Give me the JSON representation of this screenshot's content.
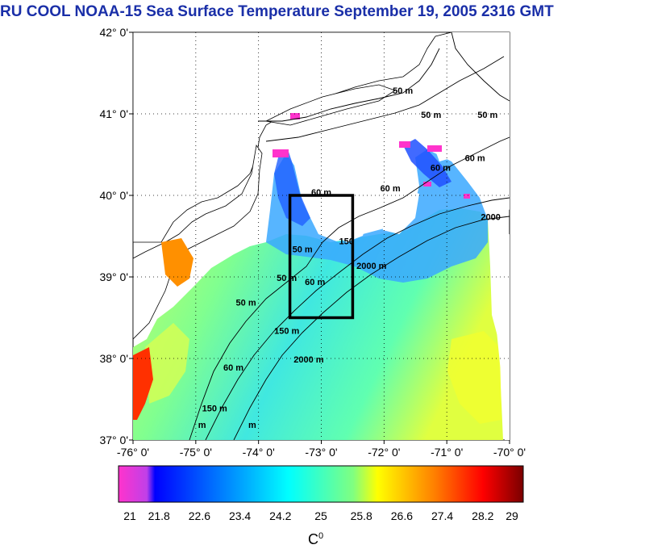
{
  "title": "RU COOL  NOAA-15 Sea Surface Temperature September 19, 2005 2316 GMT",
  "map": {
    "lon_range": [
      -76,
      -70
    ],
    "lat_range": [
      37,
      42
    ],
    "lon_ticks": [
      "-76° 0'",
      "-75° 0'",
      "-74° 0'",
      "-73° 0'",
      "-72° 0'",
      "-71° 0'",
      "-70° 0'"
    ],
    "lat_ticks": [
      "42° 0'",
      "41° 0'",
      "40° 0'",
      "39° 0'",
      "38° 0'",
      "37° 0'"
    ],
    "grid": true,
    "box": {
      "lon": [
        -73.5,
        -72.5
      ],
      "lat": [
        38.5,
        40.0
      ]
    },
    "contour_labels": [
      {
        "text": "50 m",
        "lon": -71.7,
        "lat": 41.25
      },
      {
        "text": "50 m",
        "lon": -71.25,
        "lat": 40.95
      },
      {
        "text": "50 m",
        "lon": -70.35,
        "lat": 40.95
      },
      {
        "text": "60 m",
        "lon": -70.55,
        "lat": 40.42
      },
      {
        "text": "60 m",
        "lon": -71.1,
        "lat": 40.3
      },
      {
        "text": "60 m",
        "lon": -71.9,
        "lat": 40.05
      },
      {
        "text": "60 m",
        "lon": -73.0,
        "lat": 40.0
      },
      {
        "text": "2000",
        "lon": -70.3,
        "lat": 39.7
      },
      {
        "text": "150",
        "lon": -72.6,
        "lat": 39.4
      },
      {
        "text": "2000 m",
        "lon": -72.2,
        "lat": 39.1
      },
      {
        "text": "50 m",
        "lon": -73.3,
        "lat": 39.3
      },
      {
        "text": "50 m",
        "lon": -73.55,
        "lat": 38.95
      },
      {
        "text": "60 m",
        "lon": -73.1,
        "lat": 38.9
      },
      {
        "text": "50 m",
        "lon": -74.2,
        "lat": 38.65
      },
      {
        "text": "150 m",
        "lon": -73.55,
        "lat": 38.3
      },
      {
        "text": "2000 m",
        "lon": -73.2,
        "lat": 37.95
      },
      {
        "text": "60 m",
        "lon": -74.4,
        "lat": 37.85
      },
      {
        "text": "150 m",
        "lon": -74.7,
        "lat": 37.35
      },
      {
        "text": "m",
        "lon": -74.9,
        "lat": 37.15
      },
      {
        "text": "m",
        "lon": -74.1,
        "lat": 37.15
      }
    ]
  },
  "colorbar": {
    "min": 21,
    "max": 29,
    "ticks": [
      "21",
      "21.8",
      "22.6",
      "23.4",
      "24.2",
      "25",
      "25.8",
      "26.6",
      "27.4",
      "28.2",
      "29"
    ],
    "unit": "C",
    "unit_sup": "0",
    "colors": [
      "#ff33cc",
      "#8040e0",
      "#0000ff",
      "#00a0ff",
      "#00ffff",
      "#60ffa0",
      "#ffff00",
      "#ffa000",
      "#ff2000",
      "#c00000",
      "#700000"
    ]
  }
}
